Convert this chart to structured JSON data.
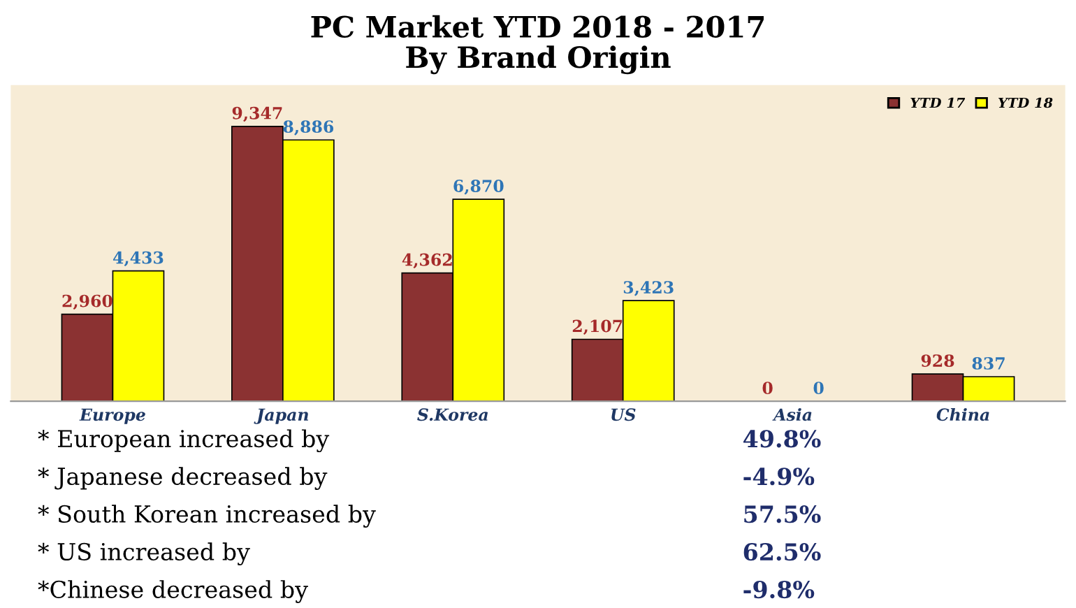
{
  "chart_data": {
    "type": "bar",
    "title": "PC Market YTD 2018 - 2017",
    "subtitle": "By Brand Origin",
    "categories": [
      "Europe",
      "Japan",
      "S.Korea",
      "US",
      "Asia",
      "China"
    ],
    "series": [
      {
        "name": "YTD 17",
        "color": "#8b3232",
        "values": [
          2960,
          9347,
          4362,
          2107,
          0,
          928
        ],
        "value_labels": [
          "2,960",
          "9,347",
          "4,362",
          "2,107",
          "0",
          "928"
        ]
      },
      {
        "name": "YTD 18",
        "color": "#ffff00",
        "values": [
          4433,
          8886,
          6870,
          3423,
          0,
          837
        ],
        "value_labels": [
          "4,433",
          "8,886",
          "6,870",
          "3,423",
          "0",
          "837"
        ]
      }
    ],
    "legend": "top right",
    "grid": false,
    "annotations": [
      "* European increased by",
      "49.8%",
      "* Japanese decreased by",
      "-4.9%",
      "* South Korean increased by",
      "57.5%",
      "* US increased by",
      "62.5%",
      "*Chinese decreased by",
      "-9.8%"
    ]
  }
}
